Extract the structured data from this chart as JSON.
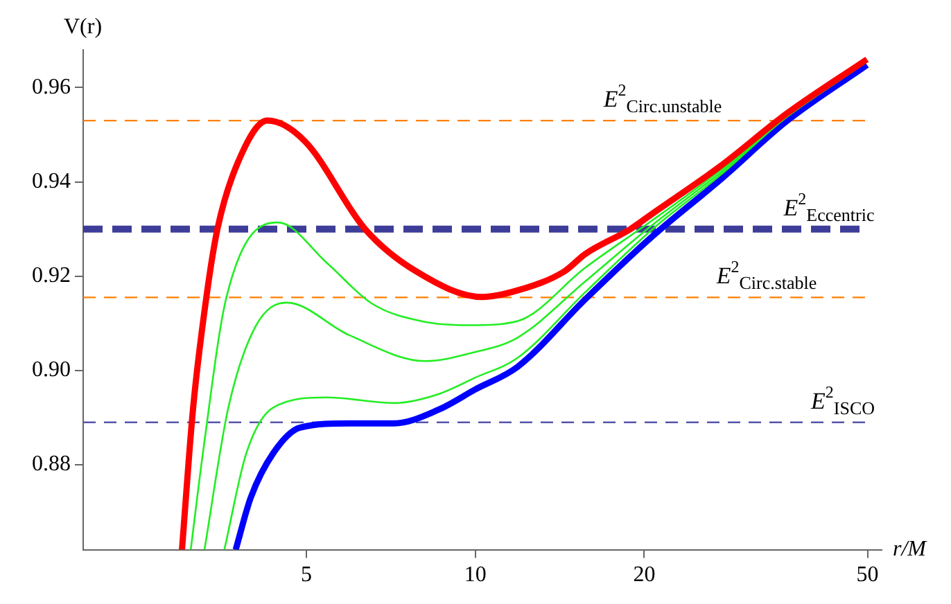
{
  "chart_data": {
    "type": "line",
    "xlabel": "r/M",
    "ylabel": "V(r)",
    "log": "x",
    "xlim": [
      2,
      53
    ],
    "xticks": [
      5,
      10,
      20,
      50
    ],
    "ylim": [
      0.862,
      0.968
    ],
    "yticks": [
      0.88,
      {
        "value": 0.9,
        "label": "0.90"
      },
      0.92,
      0.94,
      0.96
    ],
    "series": [
      {
        "color": "#ff0000",
        "x": [
          3.0,
          3.14,
          3.32,
          3.47,
          3.77,
          4.26,
          4.97,
          6.36,
          7.85,
          10.3,
          11.9,
          14.4,
          15.7,
          18.9,
          20.7,
          27.3,
          35.9,
          49.9
        ],
        "values": [
          0.862,
          0.892,
          0.916,
          0.93,
          0.944,
          0.953,
          0.9486,
          0.93,
          0.921,
          0.9156,
          0.917,
          0.921,
          0.9247,
          0.93,
          0.9333,
          0.9433,
          0.9545,
          0.966
        ]
      },
      {
        "color": "#22ee22",
        "x": [
          3.11,
          3.27,
          3.6,
          4.45,
          5.44,
          6.54,
          8.14,
          9.78,
          11.9,
          15.7,
          20.7,
          27.3,
          35.9,
          49.9
        ],
        "values": [
          0.862,
          0.8826,
          0.9155,
          0.9314,
          0.9228,
          0.9142,
          0.9103,
          0.9096,
          0.9105,
          0.9218,
          0.9319,
          0.9424,
          0.9538,
          0.9655
        ]
      },
      {
        "color": "#22ee22",
        "x": [
          3.29,
          3.63,
          4.06,
          4.61,
          5.96,
          8.14,
          9.83,
          11.9,
          15.7,
          20.7,
          27.3,
          35.9,
          49.9
        ],
        "values": [
          0.862,
          0.8922,
          0.9094,
          0.9144,
          0.9075,
          0.902,
          0.9037,
          0.907,
          0.9189,
          0.9309,
          0.9419,
          0.9538,
          0.9655
        ]
      },
      {
        "color": "#22ee22",
        "x": [
          3.57,
          3.91,
          4.37,
          5.44,
          7.16,
          8.6,
          10,
          11.9,
          15.7,
          20.7,
          27.3,
          35.9,
          49.9
        ],
        "values": [
          0.862,
          0.8826,
          0.8922,
          0.8943,
          0.8931,
          0.895,
          0.8985,
          0.9027,
          0.9166,
          0.93,
          0.9414,
          0.9538,
          0.9655
        ]
      },
      {
        "color": "#0000ff",
        "x": [
          3.74,
          3.98,
          4.37,
          4.87,
          5.96,
          7.16,
          8.6,
          10,
          11.9,
          15.7,
          20.7,
          27.3,
          35.9,
          49.9
        ],
        "values": [
          0.862,
          0.8731,
          0.8826,
          0.8879,
          0.8888,
          0.8888,
          0.8917,
          0.896,
          0.9008,
          0.9151,
          0.9285,
          0.9404,
          0.9529,
          0.9648
        ]
      }
    ],
    "ref_lines": [
      {
        "axis": "y",
        "value": 0.953,
        "label": "E$^{2}$$_{Circ.unstable}$",
        "color": "#ff8000",
        "line_style": "dashed"
      },
      {
        "axis": "y",
        "value": 0.93,
        "label": "E$^{2}$$_{Eccentric}$",
        "color": "#3d3d99",
        "line_style": "dashed"
      },
      {
        "axis": "y",
        "value": 0.9155,
        "label": "E$^{2}$$_{Circ.stable}$",
        "color": "#ff8000",
        "line_style": "dashed"
      },
      {
        "axis": "y",
        "value": 0.889,
        "label": "E$^{2}$$_{ISCO}$",
        "color": "#5555aa",
        "line_style": "dashed"
      }
    ]
  }
}
